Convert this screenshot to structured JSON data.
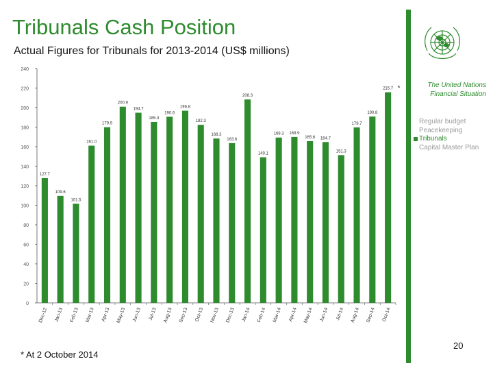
{
  "header": {
    "title": "Tribunals Cash Position",
    "subtitle": "Actual Figures for Tribunals for 2013-2014 (US$ millions)"
  },
  "side_panel": {
    "heading_line1": "The United Nations",
    "heading_line2": "Financial Situation",
    "legend": [
      {
        "label": "Regular budget",
        "active": false
      },
      {
        "label": "Peacekeeping",
        "active": false
      },
      {
        "label": "Tribunals",
        "active": true
      },
      {
        "label": "Capital Master Plan",
        "active": false
      }
    ]
  },
  "footer": {
    "footnote": "* At 2 October 2014",
    "page_number": "20"
  },
  "colors": {
    "accent": "#2e8b2e",
    "bar": "#2e8b2e",
    "muted": "#999999"
  },
  "chart_data": {
    "type": "bar",
    "title": "",
    "xlabel": "",
    "ylabel": "",
    "ylim": [
      0,
      240
    ],
    "yticks": [
      0,
      20,
      40,
      60,
      80,
      100,
      120,
      140,
      160,
      180,
      200,
      220,
      240
    ],
    "grid": false,
    "categories": [
      "Dec-12",
      "Jan-13",
      "Feb-13",
      "Mar-13",
      "Apr-13",
      "May-13",
      "Jun-13",
      "Jul-13",
      "Aug-13",
      "Sep-13",
      "Oct-13",
      "Nov-13",
      "Dec-13",
      "Jan-14",
      "Feb-14",
      "Mar-14",
      "Apr-14",
      "May-14",
      "Jun-14",
      "Jul-14",
      "Aug-14",
      "Sep-14",
      "Oct-14"
    ],
    "values": [
      127.7,
      109.6,
      101.5,
      161.0,
      179.9,
      200.9,
      194.7,
      185.3,
      190.6,
      196.8,
      182.3,
      168.3,
      163.6,
      208.3,
      149.1,
      169.3,
      169.9,
      165.6,
      164.7,
      151.3,
      179.7,
      190.8,
      215.7
    ],
    "labels": [
      "127.7",
      "109.6",
      "101.5",
      "161.0",
      "179.9",
      "200.9",
      "194.7",
      "185.3",
      "190.6",
      "196.8",
      "182.3",
      "168.3",
      "163.6",
      "208.3",
      "149.1",
      "169.3",
      "169.9",
      "165.6",
      "164.7",
      "151.3",
      "179.7",
      "190.8",
      "215.7"
    ],
    "last_label_marker": "*"
  }
}
